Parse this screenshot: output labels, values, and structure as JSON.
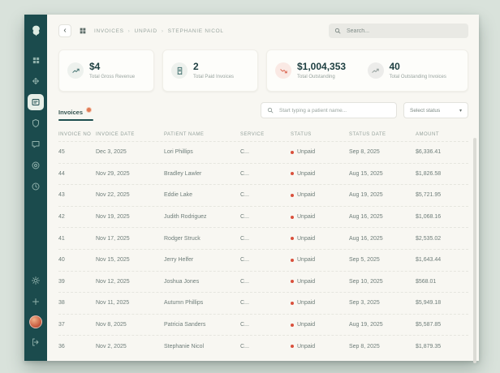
{
  "topbar": {
    "search_placeholder": "Search..."
  },
  "icons": {
    "back_chevron": "‹",
    "breadcrumb_separator": "›",
    "select_chevron": "▾"
  },
  "breadcrumb": {
    "items": [
      "INVOICES",
      "UNPAID",
      "STEPHANIE NICOL"
    ]
  },
  "stats": [
    {
      "value": "$4",
      "label": "Total Gross Revenue",
      "icon": "trend-line-icon",
      "accent": "#3e6e6c"
    },
    {
      "value": "2",
      "label": "Total Paid Invoices",
      "icon": "receipt-icon",
      "accent": "#3e6e6c"
    },
    {
      "value": "$1,004,353",
      "label": "Total Outstanding",
      "icon": "trend-down-icon",
      "accent": "#d95f49"
    },
    {
      "value": "40",
      "label": "Total Outstanding Invoices",
      "icon": "trend-line-icon",
      "accent": "#8f9b98"
    }
  ],
  "tabs": {
    "invoices_label": "Invoices"
  },
  "filters": {
    "patient_search_placeholder": "Start typing a patient name...",
    "status_select_value": "Select status"
  },
  "table": {
    "columns": [
      "Invoice No",
      "Invoice Date",
      "Patient Name",
      "Service",
      "Status",
      "Status Date",
      "Amount"
    ],
    "status_dot_color": "#d9503c",
    "rows": [
      {
        "invoice_no": "45",
        "invoice_date": "Dec 3, 2025",
        "patient_name": "Lori Phillips",
        "service": "C...",
        "status": "Unpaid",
        "status_date": "Sep 8, 2025",
        "amount": "$6,336.41"
      },
      {
        "invoice_no": "44",
        "invoice_date": "Nov 29, 2025",
        "patient_name": "Bradley Lawler",
        "service": "C...",
        "status": "Unpaid",
        "status_date": "Aug 15, 2025",
        "amount": "$1,826.58"
      },
      {
        "invoice_no": "43",
        "invoice_date": "Nov 22, 2025",
        "patient_name": "Eddie Lake",
        "service": "C...",
        "status": "Unpaid",
        "status_date": "Aug 19, 2025",
        "amount": "$5,721.95"
      },
      {
        "invoice_no": "42",
        "invoice_date": "Nov 19, 2025",
        "patient_name": "Judith Rodriguez",
        "service": "C...",
        "status": "Unpaid",
        "status_date": "Aug 16, 2025",
        "amount": "$1,068.16"
      },
      {
        "invoice_no": "41",
        "invoice_date": "Nov 17, 2025",
        "patient_name": "Rodger Struck",
        "service": "C...",
        "status": "Unpaid",
        "status_date": "Aug 16, 2025",
        "amount": "$2,535.02"
      },
      {
        "invoice_no": "40",
        "invoice_date": "Nov 15, 2025",
        "patient_name": "Jerry Helfer",
        "service": "C...",
        "status": "Unpaid",
        "status_date": "Sep 5, 2025",
        "amount": "$1,643.44"
      },
      {
        "invoice_no": "39",
        "invoice_date": "Nov 12, 2025",
        "patient_name": "Joshua Jones",
        "service": "C...",
        "status": "Unpaid",
        "status_date": "Sep 10, 2025",
        "amount": "$568.01"
      },
      {
        "invoice_no": "38",
        "invoice_date": "Nov 11, 2025",
        "patient_name": "Autumn Phillips",
        "service": "C...",
        "status": "Unpaid",
        "status_date": "Sep 3, 2025",
        "amount": "$5,949.18"
      },
      {
        "invoice_no": "37",
        "invoice_date": "Nov 8, 2025",
        "patient_name": "Patricia Sanders",
        "service": "C...",
        "status": "Unpaid",
        "status_date": "Aug 19, 2025",
        "amount": "$5,587.85"
      },
      {
        "invoice_no": "36",
        "invoice_date": "Nov 2, 2025",
        "patient_name": "Stephanie Nicol",
        "service": "C...",
        "status": "Unpaid",
        "status_date": "Sep 8, 2025",
        "amount": "$1,879.35"
      }
    ]
  },
  "sidebar": {
    "logo_icon": "tree-logo-icon",
    "top_icons": [
      "grid-dashboard-icon",
      "transfers-icon",
      "invoices-icon",
      "shield-icon",
      "chat-icon",
      "target-icon",
      "clock-icon"
    ],
    "bottom_icons": [
      "gear-icon",
      "plus-icon",
      "avatar",
      "logout-icon"
    ],
    "colors": {
      "background": "#1b4b4d",
      "active_pill": "#e7efe8"
    }
  }
}
